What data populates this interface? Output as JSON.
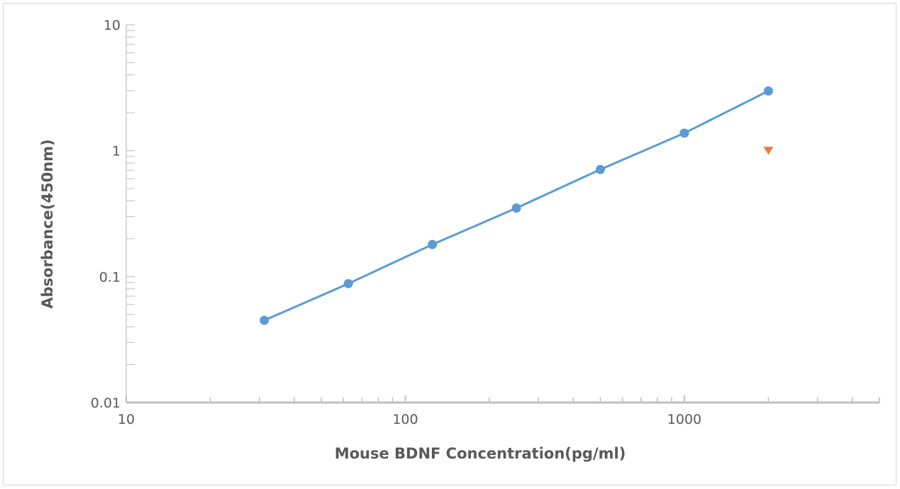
{
  "chart_data": {
    "type": "scatter",
    "title": "",
    "xlabel": "Mouse BDNF Concentration(pg/ml)",
    "ylabel": "Absorbance(450nm)",
    "x_scale": "log",
    "y_scale": "log",
    "xlim": [
      10,
      5000
    ],
    "ylim": [
      0.01,
      10
    ],
    "x_tick_labels": [
      "10",
      "100",
      "1000"
    ],
    "y_tick_labels": [
      "0.01",
      "0.1",
      "1",
      "10"
    ],
    "grid": false,
    "legend": "none",
    "series": [
      {
        "marker": "circle",
        "line": true,
        "color": "#5b9bd5",
        "x": [
          31.25,
          62.5,
          125,
          250,
          500,
          1000,
          2000
        ],
        "y": [
          0.045,
          0.088,
          0.18,
          0.35,
          0.71,
          1.38,
          2.98
        ]
      },
      {
        "marker": "triangle-down",
        "line": false,
        "color": "#ed7d31",
        "x": [
          2000
        ],
        "y": [
          1.0
        ]
      }
    ]
  }
}
